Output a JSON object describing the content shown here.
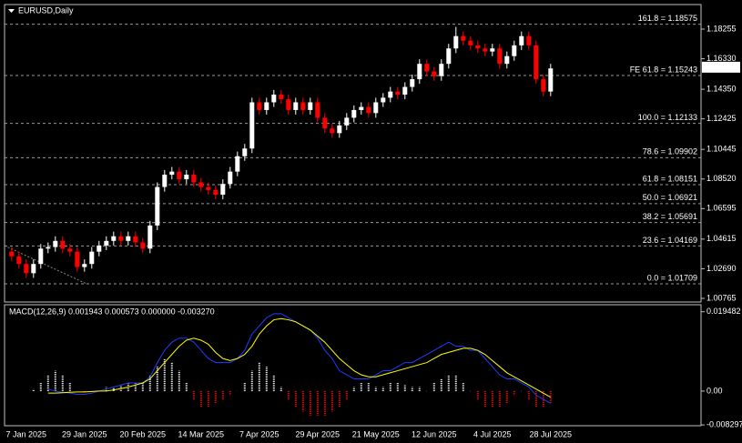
{
  "chart_data": [
    {
      "type": "candlestick",
      "title": "EURUSD,Daily",
      "categories": [
        null,
        null,
        "7 Jan 2025",
        null,
        null,
        null,
        null,
        null,
        null,
        null,
        "29 Jan 2025",
        null,
        null,
        null,
        null,
        null,
        null,
        null,
        "20 Feb 2025",
        null,
        null,
        null,
        null,
        null,
        null,
        null,
        "14 Mar 2025",
        null,
        null,
        null,
        null,
        null,
        null,
        null,
        "7 Apr 2025",
        null,
        null,
        null,
        null,
        null,
        null,
        null,
        "29 Apr 2025",
        null,
        null,
        null,
        null,
        null,
        null,
        null,
        "21 May 2025",
        null,
        null,
        null,
        null,
        null,
        null,
        null,
        "12 Jun 2025",
        null,
        null,
        null,
        null,
        null,
        null,
        null,
        "4 Jul 2025",
        null,
        null,
        null,
        null,
        null,
        null,
        null,
        "28 Jul 2025"
      ],
      "open": [
        1.038,
        1.035,
        1.03,
        1.024,
        1.03,
        1.04,
        1.041,
        1.045,
        1.04,
        1.038,
        1.028,
        1.03,
        1.038,
        1.042,
        1.045,
        1.048,
        1.045,
        1.048,
        1.044,
        1.04,
        1.055,
        1.08,
        1.088,
        1.09,
        1.085,
        1.088,
        1.083,
        1.08,
        1.078,
        1.075,
        1.082,
        1.09,
        1.1,
        1.105,
        1.135,
        1.13,
        1.135,
        1.14,
        1.137,
        1.13,
        1.135,
        1.13,
        1.135,
        1.125,
        1.118,
        1.115,
        1.12,
        1.125,
        1.13,
        1.132,
        1.128,
        1.135,
        1.138,
        1.142,
        1.14,
        1.145,
        1.15,
        1.16,
        1.155,
        1.152,
        1.16,
        1.17,
        1.178,
        1.175,
        1.172,
        1.17,
        1.168,
        1.17,
        1.16,
        1.165,
        1.172,
        1.178,
        1.172,
        1.15,
        1.142
      ],
      "high": [
        1.041,
        1.038,
        1.033,
        1.033,
        1.043,
        1.044,
        1.048,
        1.048,
        1.043,
        1.041,
        1.033,
        1.041,
        1.045,
        1.048,
        1.051,
        1.051,
        1.051,
        1.051,
        1.047,
        1.058,
        1.083,
        1.091,
        1.093,
        1.093,
        1.091,
        1.091,
        1.086,
        1.083,
        1.081,
        1.085,
        1.093,
        1.103,
        1.108,
        1.138,
        1.138,
        1.138,
        1.143,
        1.143,
        1.14,
        1.138,
        1.138,
        1.138,
        1.138,
        1.128,
        1.121,
        1.123,
        1.128,
        1.133,
        1.135,
        1.135,
        1.138,
        1.141,
        1.145,
        1.145,
        1.148,
        1.153,
        1.163,
        1.163,
        1.158,
        1.163,
        1.173,
        1.184,
        1.181,
        1.178,
        1.175,
        1.173,
        1.173,
        1.173,
        1.168,
        1.175,
        1.181,
        1.181,
        1.175,
        1.153,
        1.16
      ],
      "low": [
        1.032,
        1.027,
        1.021,
        1.021,
        1.027,
        1.037,
        1.038,
        1.037,
        1.035,
        1.025,
        1.025,
        1.027,
        1.035,
        1.039,
        1.042,
        1.042,
        1.042,
        1.041,
        1.037,
        1.037,
        1.052,
        1.077,
        1.085,
        1.082,
        1.082,
        1.08,
        1.077,
        1.075,
        1.072,
        1.072,
        1.079,
        1.087,
        1.097,
        1.102,
        1.127,
        1.127,
        1.132,
        1.134,
        1.127,
        1.127,
        1.127,
        1.127,
        1.122,
        1.115,
        1.112,
        1.112,
        1.117,
        1.122,
        1.127,
        1.125,
        1.125,
        1.132,
        1.135,
        1.137,
        1.137,
        1.142,
        1.147,
        1.152,
        1.149,
        1.149,
        1.157,
        1.167,
        1.172,
        1.169,
        1.167,
        1.165,
        1.165,
        1.157,
        1.157,
        1.162,
        1.169,
        1.169,
        1.147,
        1.139,
        1.139
      ],
      "close": [
        1.035,
        1.03,
        1.024,
        1.03,
        1.04,
        1.041,
        1.045,
        1.04,
        1.038,
        1.028,
        1.03,
        1.038,
        1.042,
        1.045,
        1.048,
        1.045,
        1.048,
        1.044,
        1.04,
        1.055,
        1.08,
        1.088,
        1.09,
        1.085,
        1.088,
        1.083,
        1.08,
        1.078,
        1.075,
        1.082,
        1.09,
        1.1,
        1.105,
        1.135,
        1.13,
        1.135,
        1.14,
        1.137,
        1.13,
        1.135,
        1.13,
        1.135,
        1.125,
        1.118,
        1.115,
        1.12,
        1.125,
        1.13,
        1.132,
        1.128,
        1.135,
        1.138,
        1.142,
        1.14,
        1.145,
        1.15,
        1.16,
        1.155,
        1.152,
        1.16,
        1.17,
        1.178,
        1.175,
        1.172,
        1.17,
        1.168,
        1.17,
        1.16,
        1.165,
        1.172,
        1.178,
        1.172,
        1.15,
        1.142,
        1.157
      ],
      "bull_color": "#ffffff",
      "bear_color": "#ff0000",
      "ylim": [
        1.0053,
        1.1985
      ],
      "yticks": [
        1.18255,
        {
          "value": 1.1633,
          "label": "1.16330"
        },
        {
          "value": 1.1435,
          "label": "1.14350"
        },
        1.12425,
        1.10445,
        {
          "value": 1.0852,
          "label": "1.08520"
        },
        1.06595,
        1.04615,
        {
          "value": 1.0269,
          "label": "1.02690"
        },
        1.00765
      ],
      "current_price": 1.15781,
      "levels": [
        {
          "value": 1.18575,
          "label": "161.8 = 1.18575"
        },
        {
          "value": 1.15243,
          "label": "FE 61.8 = 1.15243"
        },
        {
          "value": 1.12133,
          "label": "100.0 = 1.12133"
        },
        {
          "value": 1.09902,
          "label": "78.6 = 1.09902"
        },
        {
          "value": 1.08151,
          "label": "61.8 = 1.08151"
        },
        {
          "value": 1.06921,
          "label": "50.0 = 1.06921"
        },
        {
          "value": 1.05691,
          "label": "38.2 = 1.05691"
        },
        {
          "value": 1.04169,
          "label": "23.6 = 1.04169"
        },
        {
          "value": 1.01709,
          "label": "0.0 = 1.01709"
        }
      ]
    },
    {
      "type": "macd",
      "title": "MACD(12,26,9) 0.001943 0.000573 0.000000 -0.003270",
      "histogram": [
        null,
        null,
        0.0,
        0.0005,
        0.002,
        0.004,
        0.005,
        0.004,
        0.002,
        0.0,
        -0.0005,
        -0.0005,
        0.0,
        0.001,
        0.001,
        0.0015,
        0.002,
        0.002,
        0.002,
        0.004,
        0.006,
        0.008,
        0.007,
        0.005,
        0.002,
        -0.002,
        -0.004,
        -0.004,
        -0.003,
        -0.002,
        -0.001,
        0.0,
        0.002,
        0.005,
        0.007,
        0.006,
        0.004,
        0.001,
        -0.002,
        -0.004,
        -0.005,
        -0.006,
        -0.006,
        -0.006,
        -0.005,
        -0.004,
        -0.002,
        0.001,
        0.002,
        0.002,
        0.001,
        0.001,
        0.002,
        0.002,
        0.0015,
        0.001,
        0.001,
        0.0,
        0.002,
        0.003,
        0.004,
        0.004,
        0.002,
        0.0,
        -0.002,
        -0.004,
        -0.004,
        -0.004,
        -0.003,
        -0.001,
        0.0,
        -0.002,
        -0.004,
        -0.004,
        -0.003
      ],
      "main": [
        null,
        null,
        null,
        null,
        null,
        0.0005,
        0.0,
        -0.0003,
        -0.0005,
        -0.0008,
        -0.0008,
        -0.0005,
        0.0,
        0.0005,
        0.001,
        0.0015,
        0.002,
        0.002,
        0.002,
        0.0035,
        0.007,
        0.01,
        0.012,
        0.013,
        0.013,
        0.012,
        0.01,
        0.008,
        0.007,
        0.007,
        0.007,
        0.008,
        0.01,
        0.014,
        0.016,
        0.018,
        0.019,
        0.019,
        0.018,
        0.017,
        0.016,
        0.015,
        0.013,
        0.01,
        0.008,
        0.005,
        0.004,
        0.003,
        0.003,
        0.003,
        0.004,
        0.005,
        0.005,
        0.006,
        0.007,
        0.007,
        0.008,
        0.009,
        0.01,
        0.011,
        0.012,
        0.011,
        0.011,
        0.01,
        0.01,
        0.008,
        0.006,
        0.004,
        0.003,
        0.003,
        0.002,
        0.001,
        -0.001,
        -0.002,
        -0.003
      ],
      "signal": [
        null,
        null,
        null,
        null,
        null,
        -0.0005,
        -0.0005,
        -0.0004,
        -0.0003,
        -0.0002,
        -0.0002,
        -0.0001,
        0.0,
        0.0,
        0.0003,
        0.0006,
        0.001,
        0.0015,
        0.002,
        0.003,
        0.005,
        0.007,
        0.009,
        0.011,
        0.0125,
        0.013,
        0.0125,
        0.0115,
        0.0095,
        0.008,
        0.0075,
        0.008,
        0.009,
        0.011,
        0.014,
        0.016,
        0.0175,
        0.0178,
        0.0175,
        0.017,
        0.016,
        0.015,
        0.0135,
        0.012,
        0.01,
        0.008,
        0.0065,
        0.005,
        0.004,
        0.0035,
        0.0035,
        0.004,
        0.0045,
        0.005,
        0.0055,
        0.006,
        0.0065,
        0.007,
        0.008,
        0.009,
        0.0095,
        0.01,
        0.0105,
        0.0105,
        0.01,
        0.009,
        0.0075,
        0.006,
        0.0045,
        0.0035,
        0.0025,
        0.0015,
        0.0005,
        -0.0005,
        -0.0015
      ],
      "positive_color": "#ffffff",
      "negative_color": "#ff0000",
      "main_color": "#1e3cff",
      "signal_color": "#ffff00",
      "ylim": [
        -0.0085,
        0.0212
      ],
      "yticks": [
        0.019482,
        {
          "value": 0,
          "label": "0.00"
        },
        -0.008297
      ]
    }
  ]
}
